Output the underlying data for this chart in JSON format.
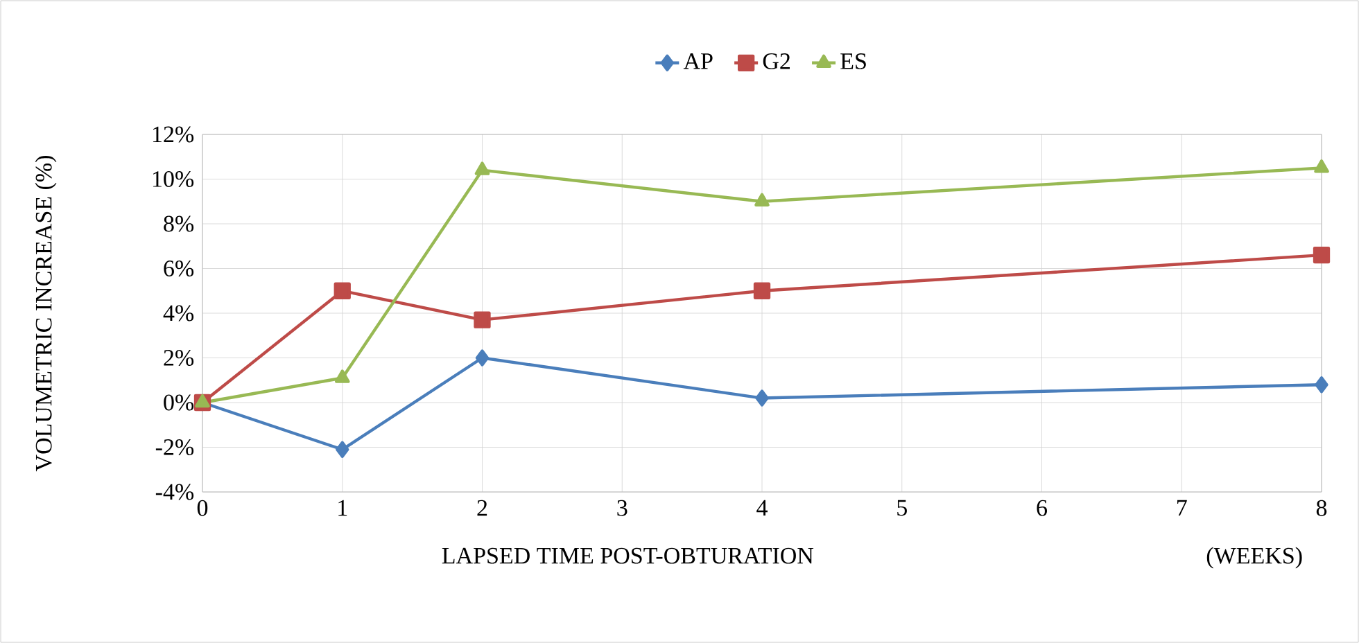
{
  "chart_data": {
    "type": "line",
    "xlabel": "LAPSED TIME POST-OBTURATION",
    "ylabel": "VOLUMETRIC INCREASE     (%)",
    "annotations": [
      "(WEEKS)"
    ],
    "x": [
      0,
      1,
      2,
      4,
      8
    ],
    "xlim": [
      0,
      8
    ],
    "xticks": [
      0,
      1,
      2,
      3,
      4,
      5,
      6,
      7,
      8
    ],
    "ylim": [
      -4,
      12
    ],
    "yticks": [
      {
        "value": -4,
        "label": "-4%"
      },
      {
        "value": -2,
        "label": "-2%"
      },
      {
        "value": 0,
        "label": "0%"
      },
      {
        "value": 2,
        "label": "2%"
      },
      {
        "value": 4,
        "label": "4%"
      },
      {
        "value": 6,
        "label": "6%"
      },
      {
        "value": 8,
        "label": "8%"
      },
      {
        "value": 10,
        "label": "10%"
      },
      {
        "value": 12,
        "label": "12%"
      }
    ],
    "grid": true,
    "legend": "top",
    "line_style": "solid",
    "series": [
      {
        "name": "AP",
        "color": "#4a7ebb",
        "marker": "diamond",
        "values": [
          0,
          -2.1,
          2.0,
          0.2,
          0.8
        ]
      },
      {
        "name": "G2",
        "color": "#be4b48",
        "marker": "square",
        "values": [
          0,
          5.0,
          3.7,
          5.0,
          6.6
        ]
      },
      {
        "name": "ES",
        "color": "#98b954",
        "marker": "triangle",
        "values": [
          0,
          1.1,
          10.4,
          9.0,
          10.5
        ]
      }
    ]
  }
}
